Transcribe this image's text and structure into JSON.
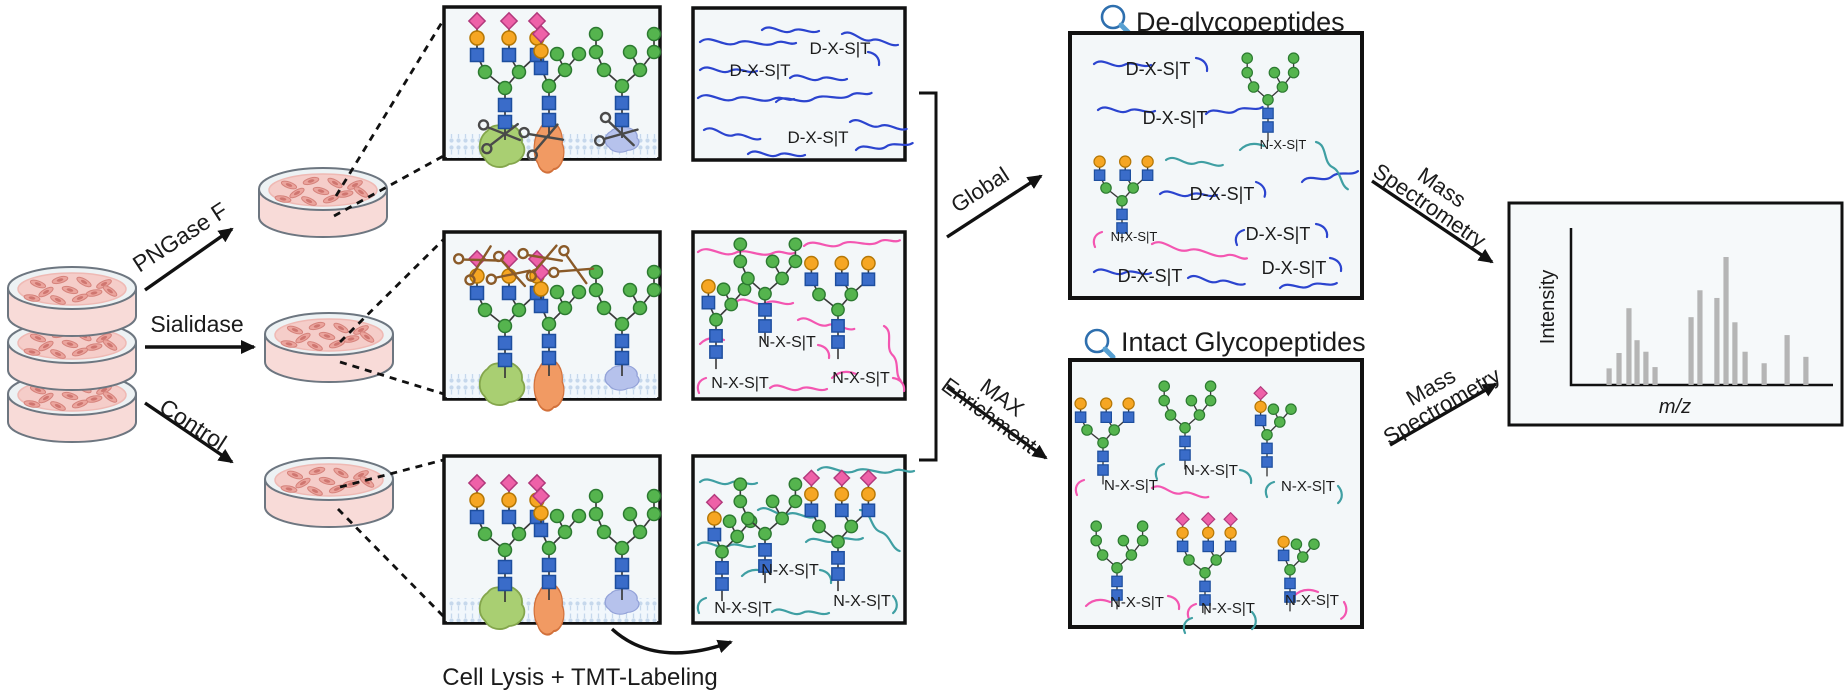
{
  "labels": {
    "pngase": "PNGase F",
    "sialidase": "Sialidase",
    "control": "Control",
    "dxst": "D-X-S|T",
    "nxst": "N-X-S|T",
    "cell_lysis": "Cell Lysis + TMT-Labeling",
    "global": "Global",
    "max_line1": "MAX",
    "max_line2": "Enrichment",
    "mass_line1": "Mass",
    "mass_line2": "Spectrometry",
    "deglyco_title": "De-glycopeptides",
    "intact_title": "Intact Glycopeptides"
  },
  "icons": {
    "deglyco_title_icon": "magnifier-icon",
    "intact_title_icon": "magnifier-icon",
    "pngase_cleavage_icon": "scissors-icon",
    "sialidase_cleavage_icon": "scissors-icon"
  },
  "colors": {
    "peptide_blue": "#2b44cf",
    "peptide_pink": "#f356b1",
    "peptide_teal": "#3f9fa3",
    "bar_gray": "#b5b5b5",
    "glcnac_blue": "#3a6cc9",
    "mannose_green": "#55b44e",
    "galactose_yellow": "#f6a623",
    "sialic_pink": "#ee61a8",
    "protein_green": "#a9cf72",
    "protein_orange": "#f19a63",
    "protein_blue": "#b6c2ec",
    "dish_pink": "#f8dbd8",
    "membrane_blue": "#c6d8ec"
  },
  "chart_data": {
    "type": "bar",
    "title": "",
    "xlabel": "m/z",
    "ylabel": "Intensity",
    "grid": false,
    "x_axis_ticks": [],
    "note": "schematic mass spectrum; x = fraction along m/z axis, i = relative intensity 0-100",
    "bars": [
      {
        "x": 0.146,
        "i": 13
      },
      {
        "x": 0.184,
        "i": 25
      },
      {
        "x": 0.222,
        "i": 60
      },
      {
        "x": 0.253,
        "i": 35
      },
      {
        "x": 0.287,
        "i": 26
      },
      {
        "x": 0.322,
        "i": 14
      },
      {
        "x": 0.46,
        "i": 53
      },
      {
        "x": 0.494,
        "i": 74
      },
      {
        "x": 0.559,
        "i": 68
      },
      {
        "x": 0.594,
        "i": 100
      },
      {
        "x": 0.628,
        "i": 49
      },
      {
        "x": 0.667,
        "i": 26
      },
      {
        "x": 0.74,
        "i": 17
      },
      {
        "x": 0.828,
        "i": 39
      },
      {
        "x": 0.9,
        "i": 22
      }
    ]
  }
}
